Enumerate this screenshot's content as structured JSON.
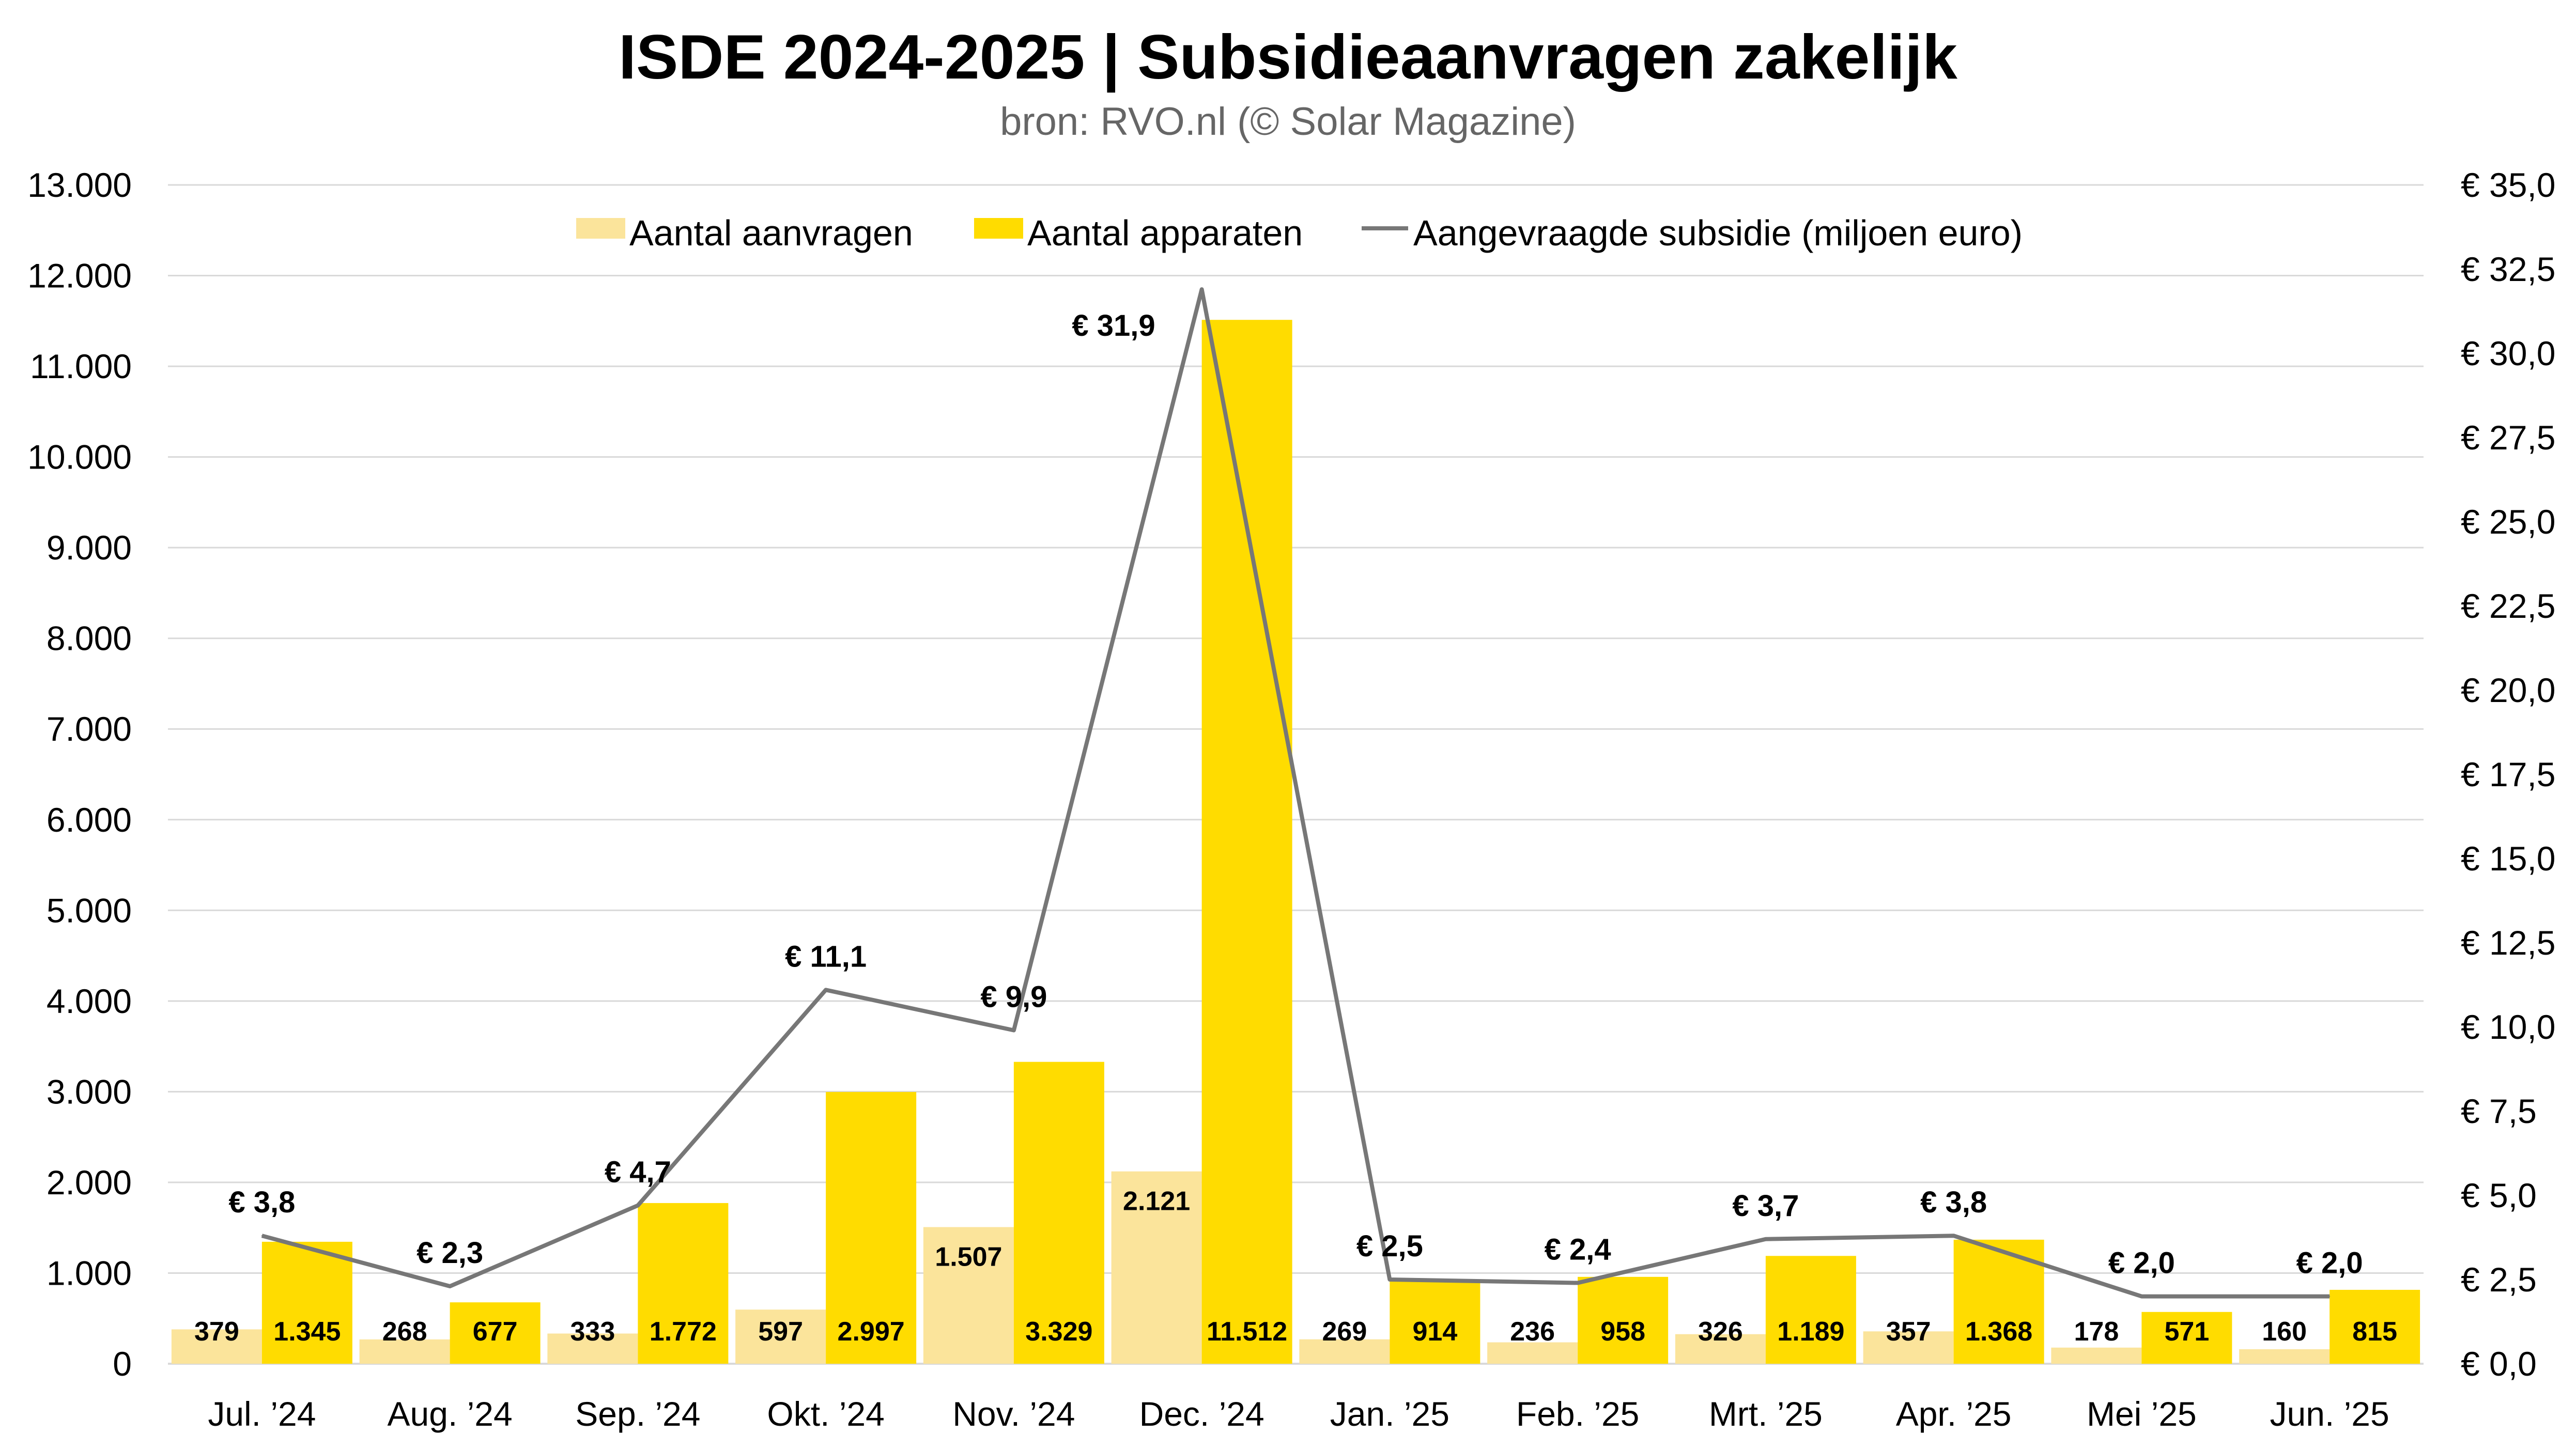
{
  "chart_data": {
    "type": "bar",
    "title": "ISDE 2024-2025 | Subsidieaanvragen zakelijk",
    "subtitle": "bron: RVO.nl (© Solar Magazine)",
    "categories": [
      "Jul. ’24",
      "Aug. ’24",
      "Sep. ’24",
      "Okt. ’24",
      "Nov. ’24",
      "Dec. ’24",
      "Jan. ’25",
      "Feb. ’25",
      "Mrt. ’25",
      "Apr. ’25",
      "Mei ’25",
      "Jun. ’25"
    ],
    "series": [
      {
        "name": "Aantal aanvragen",
        "type": "bar",
        "axis": "left",
        "color": "#FBE49B",
        "values": [
          379,
          268,
          333,
          597,
          1507,
          2121,
          269,
          236,
          326,
          357,
          178,
          160
        ],
        "labels": [
          "379",
          "268",
          "333",
          "597",
          "1.507",
          "2.121",
          "269",
          "236",
          "326",
          "357",
          "178",
          "160"
        ]
      },
      {
        "name": "Aantal apparaten",
        "type": "bar",
        "axis": "left",
        "color": "#FFDC00",
        "values": [
          1345,
          677,
          1772,
          2997,
          3329,
          11512,
          914,
          958,
          1189,
          1368,
          571,
          815
        ],
        "labels": [
          "1.345",
          "677",
          "1.772",
          "2.997",
          "3.329",
          "11.512",
          "914",
          "958",
          "1.189",
          "1.368",
          "571",
          "815"
        ]
      },
      {
        "name": "Aangevraagde subsidie (miljoen euro)",
        "type": "line",
        "axis": "right",
        "color": "#777777",
        "values": [
          3.8,
          2.3,
          4.7,
          11.1,
          9.9,
          31.9,
          2.5,
          2.4,
          3.7,
          3.8,
          2.0,
          2.0
        ],
        "labels": [
          "€ 3,8",
          "€ 2,3",
          "€ 4,7",
          "€ 11,1",
          "€ 9,9",
          "€ 31,9",
          "€ 2,5",
          "€ 2,4",
          "€ 3,7",
          "€ 3,8",
          "€ 2,0",
          "€ 2,0"
        ]
      }
    ],
    "y_left": {
      "lim": [
        0,
        13000
      ],
      "ticks": [
        0,
        1000,
        2000,
        3000,
        4000,
        5000,
        6000,
        7000,
        8000,
        9000,
        10000,
        11000,
        12000,
        13000
      ],
      "tick_labels": [
        "0",
        "1.000",
        "2.000",
        "3.000",
        "4.000",
        "5.000",
        "6.000",
        "7.000",
        "8.000",
        "9.000",
        "10.000",
        "11.000",
        "12.000",
        "13.000"
      ]
    },
    "y_right": {
      "lim": [
        0,
        35
      ],
      "ticks": [
        0,
        2.5,
        5,
        7.5,
        10,
        12.5,
        15,
        17.5,
        20,
        22.5,
        25,
        27.5,
        30,
        32.5,
        35
      ],
      "tick_labels": [
        "€ 0,0",
        "€ 2,5",
        "€ 5,0",
        "€ 7,5",
        "€ 10,0",
        "€ 12,5",
        "€ 15,0",
        "€ 17,5",
        "€ 20,0",
        "€ 22,5",
        "€ 25,0",
        "€ 27,5",
        "€ 30,0",
        "€ 32,5",
        "€ 35,0"
      ]
    },
    "grid": true,
    "legend_position": "top"
  }
}
